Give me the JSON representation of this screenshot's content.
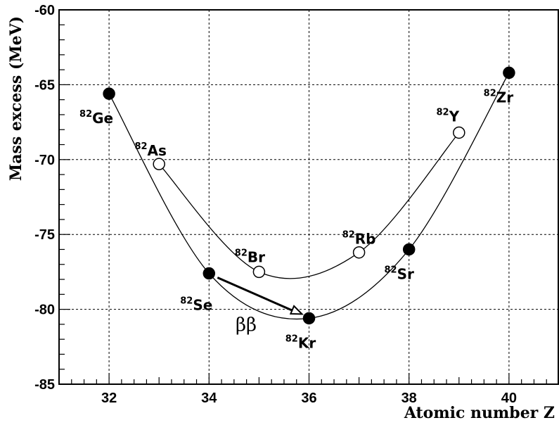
{
  "chart_data": {
    "type": "scatter",
    "xlabel": "Atomic number Z",
    "ylabel": "Mass excess (MeV)",
    "xlim": [
      31,
      41
    ],
    "ylim": [
      -85,
      -60
    ],
    "x_ticks": [
      "32",
      "34",
      "36",
      "38",
      "40"
    ],
    "y_ticks": [
      "-60",
      "-65",
      "-70",
      "-75",
      "-80",
      "-85"
    ],
    "grid": true,
    "series": [
      {
        "marker": "filled",
        "points": [
          {
            "x": 32,
            "y": -65.6,
            "mass": "82",
            "symbol": "Ge"
          },
          {
            "x": 34,
            "y": -77.6,
            "mass": "82",
            "symbol": "Se"
          },
          {
            "x": 36,
            "y": -80.6,
            "mass": "82",
            "symbol": "Kr"
          },
          {
            "x": 38,
            "y": -76.0,
            "mass": "82",
            "symbol": "Sr"
          },
          {
            "x": 40,
            "y": -64.2,
            "mass": "82",
            "symbol": "Zr"
          }
        ]
      },
      {
        "marker": "open",
        "points": [
          {
            "x": 33,
            "y": -70.3,
            "mass": "82",
            "symbol": "As"
          },
          {
            "x": 35,
            "y": -77.5,
            "mass": "82",
            "symbol": "Br"
          },
          {
            "x": 37,
            "y": -76.2,
            "mass": "82",
            "symbol": "Rb"
          },
          {
            "x": 39,
            "y": -68.2,
            "mass": "82",
            "symbol": "Y"
          }
        ]
      }
    ],
    "annotations": [
      {
        "text": "ββ",
        "from": {
          "x": 34,
          "y": -77.6
        },
        "to": {
          "x": 36,
          "y": -80.6
        }
      }
    ]
  }
}
